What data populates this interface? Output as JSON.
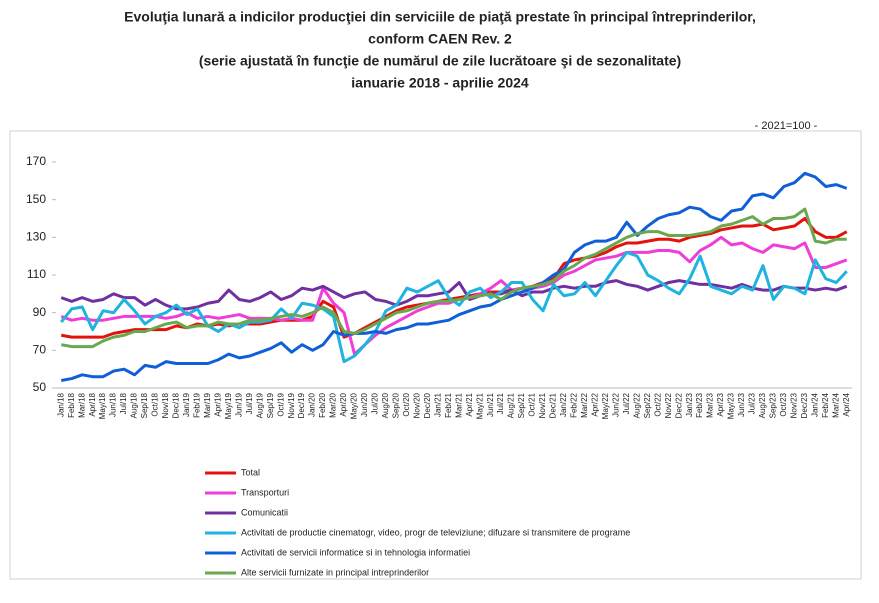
{
  "chart_data": {
    "type": "line",
    "title_lines": [
      "Evoluţia lunară a indicilor producţiei din serviciile de piaţă prestate în principal întreprinderilor,",
      "conform CAEN Rev. 2",
      "(serie ajustată în funcţie de numărul de zile lucrătoare şi de sezonalitate)",
      "ianuarie 2018 - aprilie 2024"
    ],
    "annotation": "- 2021=100 -",
    "categories": [
      "Jan/18",
      "Feb/18",
      "Mar/18",
      "Apr/18",
      "May/18",
      "Jun/18",
      "Jul/18",
      "Aug/18",
      "Sep/18",
      "Oct/18",
      "Nov/18",
      "Dec/18",
      "Jan/19",
      "Feb/19",
      "Mar/19",
      "Apr/19",
      "May/19",
      "Jun/19",
      "Jul/19",
      "Aug/19",
      "Sep/19",
      "Oct/19",
      "Nov/19",
      "Dec/19",
      "Jan/20",
      "Feb/20",
      "Mar/20",
      "Apr/20",
      "May/20",
      "Jun/20",
      "Jul/20",
      "Aug/20",
      "Sep/20",
      "Oct/20",
      "Nov/20",
      "Dec/20",
      "Jan/21",
      "Feb/21",
      "Mar/21",
      "Apr/21",
      "May/21",
      "Jun/21",
      "Jul/21",
      "Aug/21",
      "Sep/21",
      "Oct/21",
      "Nov/21",
      "Dec/21",
      "Jan/22",
      "Feb/22",
      "Mar/22",
      "Apr/22",
      "May/22",
      "Jun/22",
      "Jul/22",
      "Aug/22",
      "Sep/22",
      "Oct/22",
      "Nov/22",
      "Dec/22",
      "Jan/23",
      "Feb/23",
      "Mar/23",
      "Apr/23",
      "May/23",
      "Jun/23",
      "Jul/23",
      "Aug/23",
      "Sep/23",
      "Oct/23",
      "Nov/23",
      "Dec/23",
      "Jan/24",
      "Feb/24",
      "Mar/24",
      "Apr/24"
    ],
    "ylim": [
      50,
      170
    ],
    "yticks": [
      50,
      70,
      90,
      110,
      130,
      150,
      170
    ],
    "grid": false,
    "legend": "bottom",
    "series": [
      {
        "name": "Total",
        "color": "#e3120b",
        "values": [
          78,
          77,
          77,
          77,
          77,
          79,
          80,
          81,
          81,
          81,
          81,
          83,
          82,
          84,
          83,
          84,
          83,
          84,
          84,
          84,
          85,
          86,
          86,
          86,
          88,
          96,
          93,
          77,
          79,
          82,
          85,
          88,
          91,
          93,
          94,
          95,
          96,
          97,
          98,
          99,
          100,
          101,
          101,
          102,
          103,
          104,
          106,
          108,
          116,
          118,
          119,
          120,
          122,
          125,
          127,
          127,
          128,
          129,
          129,
          128,
          130,
          131,
          132,
          134,
          135,
          136,
          136,
          137,
          134,
          135,
          136,
          140,
          133,
          130,
          130,
          133
        ]
      },
      {
        "name": "Transporturi",
        "color": "#f03cd8",
        "values": [
          88,
          86,
          87,
          86,
          86,
          87,
          88,
          88,
          88,
          88,
          87,
          88,
          90,
          87,
          88,
          87,
          88,
          89,
          87,
          87,
          87,
          86,
          87,
          86,
          86,
          103,
          95,
          90,
          68,
          73,
          78,
          82,
          85,
          88,
          91,
          93,
          95,
          95,
          97,
          98,
          100,
          103,
          107,
          102,
          103,
          103,
          104,
          106,
          110,
          112,
          115,
          118,
          119,
          120,
          122,
          122,
          122,
          123,
          123,
          122,
          117,
          123,
          126,
          130,
          126,
          127,
          124,
          122,
          126,
          125,
          124,
          127,
          114,
          114,
          116,
          118
        ]
      },
      {
        "name": "Comunicatii",
        "color": "#7030a0",
        "values": [
          98,
          96,
          98,
          96,
          97,
          100,
          98,
          98,
          94,
          97,
          94,
          92,
          92,
          93,
          95,
          96,
          102,
          97,
          96,
          98,
          101,
          97,
          99,
          103,
          102,
          104,
          101,
          98,
          100,
          101,
          97,
          96,
          94,
          96,
          99,
          99,
          100,
          101,
          106,
          97,
          99,
          100,
          100,
          102,
          99,
          101,
          101,
          103,
          104,
          103,
          104,
          104,
          106,
          107,
          105,
          104,
          102,
          104,
          106,
          107,
          106,
          105,
          105,
          104,
          103,
          105,
          103,
          102,
          102,
          104,
          103,
          103,
          102,
          103,
          102,
          104
        ]
      },
      {
        "name": "Activitati de productie cinematogr, video, progr de televiziune; difuzare si transmitere de programe",
        "color": "#1fb4e0",
        "values": [
          85,
          92,
          93,
          81,
          91,
          90,
          97,
          91,
          84,
          88,
          90,
          94,
          89,
          92,
          83,
          80,
          84,
          82,
          85,
          85,
          86,
          92,
          87,
          95,
          94,
          92,
          88,
          64,
          67,
          73,
          80,
          91,
          94,
          103,
          101,
          104,
          107,
          98,
          94,
          101,
          103,
          98,
          101,
          106,
          106,
          97,
          91,
          105,
          99,
          100,
          106,
          99,
          107,
          115,
          122,
          120,
          110,
          107,
          103,
          100,
          108,
          120,
          104,
          102,
          100,
          104,
          102,
          115,
          97,
          104,
          103,
          100,
          118,
          108,
          106,
          112
        ]
      },
      {
        "name": "Activitati de servicii informatice si in tehnologia informatiei",
        "color": "#0f5fd8",
        "values": [
          54,
          55,
          57,
          56,
          56,
          59,
          60,
          57,
          62,
          61,
          64,
          63,
          63,
          63,
          63,
          65,
          68,
          66,
          67,
          69,
          71,
          74,
          69,
          73,
          70,
          73,
          80,
          78,
          79,
          79,
          80,
          79,
          81,
          82,
          84,
          84,
          85,
          86,
          89,
          91,
          93,
          94,
          97,
          99,
          101,
          103,
          106,
          110,
          113,
          122,
          126,
          128,
          128,
          130,
          138,
          131,
          136,
          140,
          142,
          143,
          146,
          145,
          141,
          139,
          144,
          145,
          152,
          153,
          151,
          157,
          159,
          164,
          162,
          157,
          158,
          156
        ]
      },
      {
        "name": "Alte servicii furnizate in principal intreprinderilor",
        "color": "#6aa84f",
        "values": [
          73,
          72,
          72,
          72,
          75,
          77,
          78,
          80,
          80,
          82,
          84,
          85,
          82,
          83,
          83,
          85,
          84,
          84,
          86,
          86,
          87,
          88,
          89,
          88,
          90,
          93,
          90,
          80,
          79,
          81,
          84,
          87,
          90,
          91,
          93,
          95,
          96,
          96,
          97,
          98,
          99,
          100,
          97,
          101,
          103,
          104,
          105,
          107,
          112,
          115,
          119,
          121,
          124,
          127,
          130,
          132,
          133,
          133,
          131,
          131,
          131,
          132,
          133,
          136,
          137,
          139,
          141,
          137,
          140,
          140,
          141,
          145,
          128,
          127,
          129,
          129
        ]
      }
    ]
  }
}
